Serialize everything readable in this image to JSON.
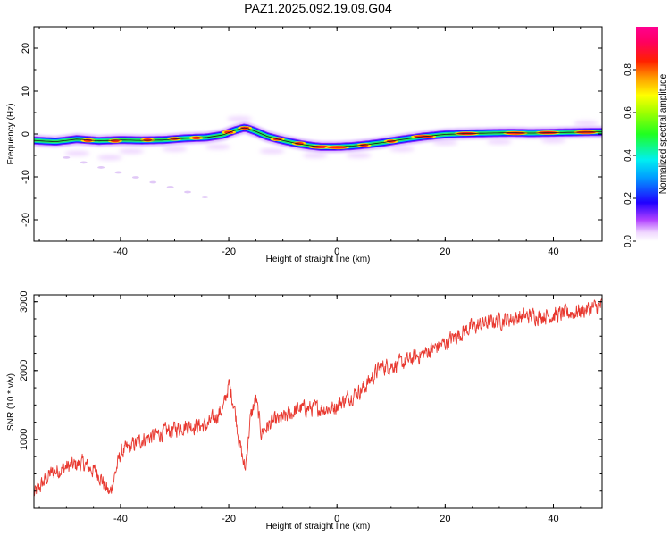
{
  "title": "PAZ1.2025.092.19.09.G04",
  "colors": {
    "snr_line": "#e8382f",
    "axis": "#000000",
    "centerline": "#1b1b1b"
  },
  "chart_data": [
    {
      "type": "heatmap",
      "xlabel": "Height of straight line (km)",
      "ylabel": "Frequency (Hz)",
      "xlim": [
        -56,
        49
      ],
      "ylim": [
        -25,
        25
      ],
      "x_ticks": [
        -40,
        -20,
        0,
        20,
        40
      ],
      "y_ticks": [
        -20,
        -10,
        0,
        10,
        20
      ],
      "colorbar": {
        "label": "Normalized spectral amplitude",
        "range": [
          0,
          1
        ],
        "ticks": [
          0.0,
          0.2,
          0.4,
          0.6,
          0.8
        ],
        "colormap": "hsv-like (white, violet, blue, cyan, green, yellow, orange, red, pink)"
      },
      "ridge": {
        "x": [
          -56,
          -52,
          -48,
          -44,
          -40,
          -36,
          -32,
          -28,
          -24,
          -21,
          -19,
          -17,
          -15,
          -13,
          -11,
          -9,
          -7,
          -5,
          -3,
          0,
          3,
          6,
          9,
          12,
          16,
          20,
          24,
          28,
          32,
          36,
          40,
          44,
          49
        ],
        "frequency": [
          -1.5,
          -1.8,
          -1.2,
          -1.6,
          -1.4,
          -1.5,
          -1.4,
          -1.0,
          -0.8,
          -0.2,
          0.8,
          1.5,
          0.6,
          -0.5,
          -1.2,
          -1.8,
          -2.3,
          -2.7,
          -3.0,
          -3.0,
          -2.8,
          -2.4,
          -1.9,
          -1.3,
          -0.6,
          -0.1,
          0.1,
          0.2,
          0.3,
          0.2,
          0.3,
          0.4,
          0.5
        ]
      },
      "maxima": [
        {
          "x": -46,
          "y": -1.5
        },
        {
          "x": -41,
          "y": -1.6
        },
        {
          "x": -35,
          "y": -1.4
        },
        {
          "x": -30,
          "y": -1.1
        },
        {
          "x": -26,
          "y": -0.9
        },
        {
          "x": -20,
          "y": 0.4
        },
        {
          "x": -17,
          "y": 1.4
        },
        {
          "x": -11,
          "y": -1.2
        },
        {
          "x": -7,
          "y": -2.2
        },
        {
          "x": -3,
          "y": -3.0
        },
        {
          "x": 0,
          "y": -3.1
        },
        {
          "x": 5,
          "y": -2.6
        },
        {
          "x": 10,
          "y": -1.7
        },
        {
          "x": 16,
          "y": -0.6
        },
        {
          "x": 24,
          "y": 0.1
        },
        {
          "x": 33,
          "y": 0.2
        },
        {
          "x": 39,
          "y": 0.3
        },
        {
          "x": 46,
          "y": 0.4
        }
      ]
    },
    {
      "type": "line",
      "xlabel": "Height of straight line (km)",
      "ylabel": "SNR (10 * v/v)",
      "xlim": [
        -56,
        49
      ],
      "ylim": [
        0,
        3100
      ],
      "x_ticks": [
        -40,
        -20,
        0,
        20,
        40
      ],
      "y_ticks": [
        1000,
        2000,
        3000
      ],
      "trend": {
        "x": [
          -56,
          -53,
          -50,
          -47,
          -44,
          -42,
          -40,
          -36,
          -32,
          -28,
          -24,
          -21,
          -20,
          -19,
          -18,
          -17,
          -16,
          -15,
          -14,
          -12,
          -10,
          -7,
          -4,
          -1,
          2,
          5,
          8,
          12,
          16,
          20,
          24,
          28,
          32,
          36,
          40,
          44,
          47,
          49
        ],
        "snr": [
          200,
          500,
          600,
          650,
          500,
          200,
          800,
          1000,
          1100,
          1200,
          1200,
          1450,
          1800,
          1500,
          950,
          550,
          1300,
          1600,
          1100,
          1250,
          1300,
          1450,
          1450,
          1450,
          1600,
          1750,
          2050,
          2100,
          2250,
          2400,
          2600,
          2700,
          2750,
          2800,
          2800,
          2850,
          2900,
          2950
        ]
      },
      "noise_amplitude": 180
    }
  ]
}
